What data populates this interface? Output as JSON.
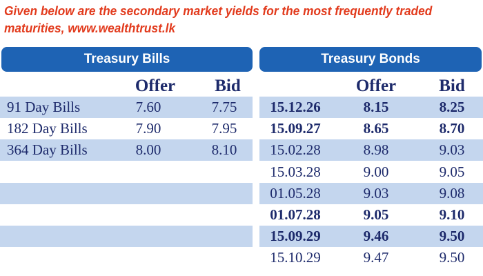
{
  "intro": "Given below are the secondary market yields for the most frequently traded maturities, www.wealthtrust.lk",
  "bills": {
    "title": "Treasury Bills",
    "offer_label": "Offer",
    "bid_label": "Bid",
    "rows": [
      {
        "name": "91 Day Bills",
        "offer": "7.60",
        "bid": "7.75"
      },
      {
        "name": "182 Day Bills",
        "offer": "7.90",
        "bid": "7.95"
      },
      {
        "name": "364 Day Bills",
        "offer": "8.00",
        "bid": "8.10"
      }
    ]
  },
  "bonds": {
    "title": "Treasury Bonds",
    "offer_label": "Offer",
    "bid_label": "Bid",
    "rows": [
      {
        "date": "15.12.26",
        "offer": "8.15",
        "bid": "8.25",
        "bold": true
      },
      {
        "date": "15.09.27",
        "offer": "8.65",
        "bid": "8.70",
        "bold": true
      },
      {
        "date": "15.02.28",
        "offer": "8.98",
        "bid": "9.03",
        "bold": false
      },
      {
        "date": "15.03.28",
        "offer": "9.00",
        "bid": "9.05",
        "bold": false
      },
      {
        "date": "01.05.28",
        "offer": "9.03",
        "bid": "9.08",
        "bold": false
      },
      {
        "date": "01.07.28",
        "offer": "9.05",
        "bid": "9.10",
        "bold": true
      },
      {
        "date": "15.09.29",
        "offer": "9.46",
        "bid": "9.50",
        "bold": true
      },
      {
        "date": "15.10.29",
        "offer": "9.47",
        "bid": "9.50",
        "bold": false
      }
    ]
  }
}
